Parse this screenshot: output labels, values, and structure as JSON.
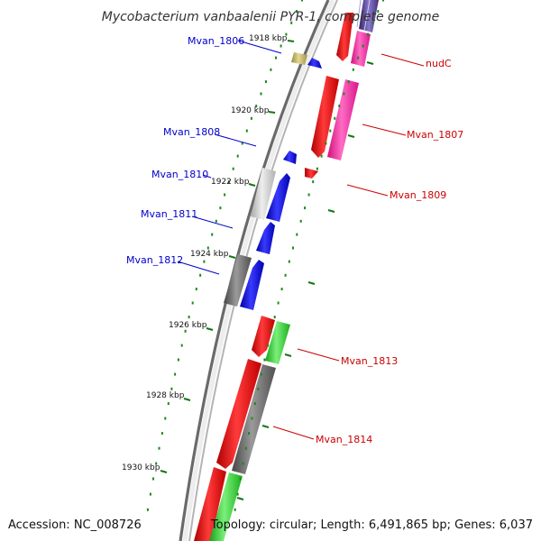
{
  "title": "Mycobacterium vanbaalenii PYR-1, complete genome",
  "footer": {
    "accession": "Accession: NC_008726",
    "summary": "Topology: circular; Length: 6,491,865 bp; Genes: 6,037"
  },
  "scale_ticks": [
    {
      "label": "1918 kbp"
    },
    {
      "label": "1920 kbp"
    },
    {
      "label": "1922 kbp"
    },
    {
      "label": "1924 kbp"
    },
    {
      "label": "1926 kbp"
    },
    {
      "label": "1928 kbp"
    },
    {
      "label": "1930 kbp"
    }
  ],
  "gene_labels_left": [
    {
      "text": "Mvan_1806"
    },
    {
      "text": "Mvan_1808"
    },
    {
      "text": "Mvan_1810"
    },
    {
      "text": "Mvan_1811"
    },
    {
      "text": "Mvan_1812"
    }
  ],
  "gene_labels_right": [
    {
      "text": "nudC"
    },
    {
      "text": "Mvan_1807"
    },
    {
      "text": "Mvan_1809"
    },
    {
      "text": "Mvan_1813"
    },
    {
      "text": "Mvan_1814"
    }
  ],
  "colors": {
    "forward_cds": "#e00000",
    "reverse_cds": "#0000ee",
    "cog_pink": "#ff2aa0",
    "cog_green": "#22cc22",
    "cog_gray": "#666666",
    "cog_lightgray": "#c8c8c8",
    "cog_khaki": "#b8aa66",
    "left_label": "#0000cc",
    "right_label": "#cc0000",
    "dots": "#1a8a1a"
  }
}
